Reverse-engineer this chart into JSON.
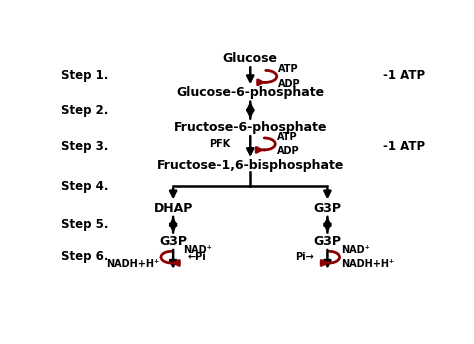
{
  "bg_color": "#ffffff",
  "text_color": "#000000",
  "arrow_color": "#000000",
  "red_color": "#8B0000",
  "fig_width": 4.74,
  "fig_height": 3.44,
  "dpi": 100,
  "labels": {
    "glucose": "Glucose",
    "g6p": "Glucose-6-phosphate",
    "f6p": "Fructose-6-phosphate",
    "f16bp": "Fructose-1,6-bisphosphate",
    "dhap": "DHAP",
    "g3p_left": "G3P",
    "g3p_right": "G3P",
    "g3p_left2": "G3P",
    "g3p_right2": "G3P",
    "step1": "Step 1.",
    "step2": "Step 2.",
    "step3": "Step 3.",
    "step4": "Step 4.",
    "step5": "Step 5.",
    "step6": "Step 6.",
    "atp1": "ATP",
    "adp1": "ADP",
    "pfk": "PFK",
    "atp3": "ATP",
    "adp3": "ADP",
    "minus1_atp1": "-1 ATP",
    "minus1_atp3": "-1 ATP",
    "nad_left": "NAD⁺",
    "nadh_left": "NADH+H⁺",
    "pi_left": "←Pi",
    "nad_right": "NAD⁺",
    "nadh_right": "NADH+H⁺",
    "pi_right": "Pi→"
  }
}
